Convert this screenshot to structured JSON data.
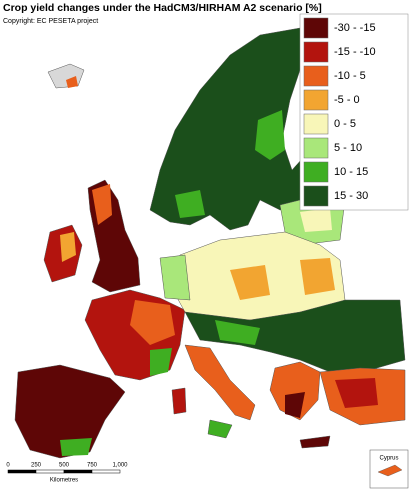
{
  "title": "Crop yield changes under the HadCM3/HIRHAM A2 scenario [%]",
  "copyright": "Copyright: EC PESETA project",
  "legend": [
    {
      "label": "-30 - -15",
      "color": "#5e0606"
    },
    {
      "label": "-15 - -10",
      "color": "#b3140e"
    },
    {
      "label": "-10 - 5",
      "color": "#e85f1c"
    },
    {
      "label": "-5 - 0",
      "color": "#f2a531"
    },
    {
      "label": "0 - 5",
      "color": "#f8f6b8"
    },
    {
      "label": "5 - 10",
      "color": "#a9e77a"
    },
    {
      "label": "10 - 15",
      "color": "#3fae22"
    },
    {
      "label": "15 - 30",
      "color": "#1b4f1b"
    }
  ],
  "scale_bar": {
    "labels": [
      "0",
      "250",
      "500",
      "750",
      "1,000"
    ],
    "unit": "Kilometres"
  },
  "inset_label": "Cyprus"
}
